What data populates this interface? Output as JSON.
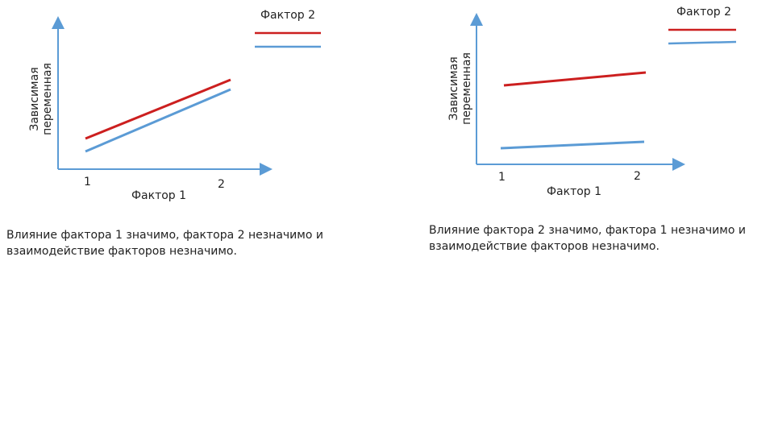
{
  "colors": {
    "series_red": "#cc1f1f",
    "series_blue": "#5b9bd5",
    "axis": "#5b9bd5"
  },
  "panels": [
    {
      "legend_title": "Фактор 2",
      "ylabel_line1": "Зависимая",
      "ylabel_line2": "переменная",
      "xlabel": "Фактор 1",
      "x_tick_1": "1",
      "x_tick_2": "2",
      "caption": "Влияние фактора 1 значимо, фактора 2 незначимо и взаимодействие факторов незначимо."
    },
    {
      "legend_title": "Фактор 2",
      "ylabel_line1": "Зависимая",
      "ylabel_line2": "переменная",
      "xlabel": "Фактор 1",
      "x_tick_1": "1",
      "x_tick_2": "2",
      "caption": "Влияние фактора 2 значимо, фактора 1 незначимо и взаимодействие факторов незначимо."
    }
  ]
}
